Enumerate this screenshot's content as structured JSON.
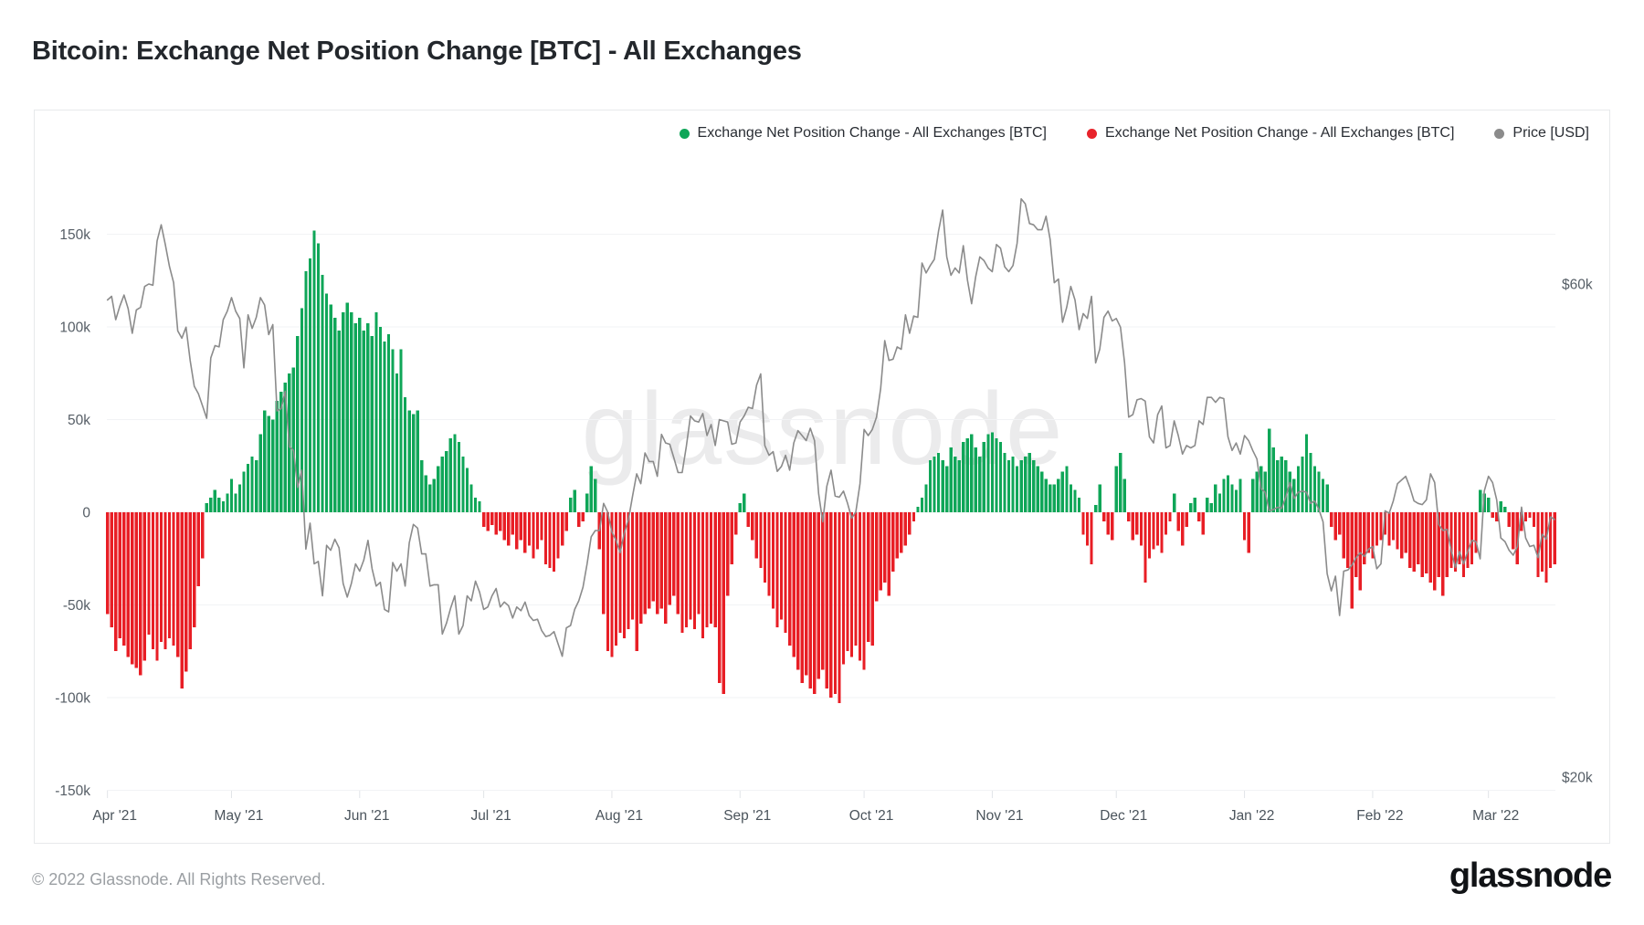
{
  "page": {
    "title": "Bitcoin: Exchange Net Position Change [BTC] - All Exchanges"
  },
  "watermark": "glassnode",
  "legend": [
    {
      "label": "Exchange Net Position Change - All Exchanges [BTC]",
      "color": "#0fa658"
    },
    {
      "label": "Exchange Net Position Change - All Exchanges [BTC]",
      "color": "#e8232b"
    },
    {
      "label": "Price [USD]",
      "color": "#8b8b8b"
    }
  ],
  "footer": {
    "copyright": "© 2022 Glassnode. All Rights Reserved.",
    "brand": "glassnode"
  },
  "chart_data": {
    "type": "bar+line",
    "title": "Bitcoin: Exchange Net Position Change [BTC] - All Exchanges",
    "x_start_date": "2021-04-01",
    "x_end_date": "2022-03-17",
    "x_frequency": "daily",
    "grid": "horizontal",
    "legend_position": "top-right",
    "left_axis": {
      "unit": "BTC",
      "labels": [
        "150k",
        "100k",
        "50k",
        "0",
        "-50k",
        "-100k",
        "-150k"
      ],
      "values_k": [
        150,
        100,
        50,
        0,
        -50,
        -100,
        -150
      ],
      "ylim_k": [
        -150,
        150
      ]
    },
    "right_axis": {
      "unit": "USD",
      "labels": [
        "$60k",
        "$20k"
      ],
      "values_k": [
        60,
        20
      ]
    },
    "months": [
      {
        "label": "Apr '21",
        "start_index": 0
      },
      {
        "label": "May '21",
        "start_index": 30
      },
      {
        "label": "Jun '21",
        "start_index": 61
      },
      {
        "label": "Jul '21",
        "start_index": 91
      },
      {
        "label": "Aug '21",
        "start_index": 122
      },
      {
        "label": "Sep '21",
        "start_index": 153
      },
      {
        "label": "Oct '21",
        "start_index": 183
      },
      {
        "label": "Nov '21",
        "start_index": 214
      },
      {
        "label": "Dec '21",
        "start_index": 244
      },
      {
        "label": "Jan '22",
        "start_index": 275
      },
      {
        "label": "Feb '22",
        "start_index": 306
      },
      {
        "label": "Mar '22",
        "start_index": 334
      }
    ],
    "series": [
      {
        "name": "Exchange Net Position Change - All Exchanges [BTC]",
        "type": "bar",
        "unit": "thousand BTC",
        "color_positive": "#0fa658",
        "color_negative": "#e81e25",
        "values_k": [
          -55,
          -62,
          -75,
          -68,
          -72,
          -78,
          -82,
          -84,
          -88,
          -80,
          -66,
          -74,
          -80,
          -70,
          -74,
          -68,
          -72,
          -78,
          -95,
          -86,
          -74,
          -62,
          -40,
          -25,
          5,
          8,
          12,
          8,
          6,
          10,
          18,
          10,
          15,
          22,
          26,
          30,
          28,
          42,
          55,
          52,
          50,
          60,
          65,
          70,
          75,
          78,
          95,
          110,
          130,
          137,
          152,
          145,
          128,
          118,
          112,
          105,
          98,
          108,
          113,
          108,
          102,
          105,
          98,
          102,
          95,
          108,
          100,
          92,
          96,
          88,
          75,
          88,
          62,
          55,
          53,
          55,
          28,
          20,
          15,
          18,
          25,
          30,
          33,
          40,
          42,
          38,
          30,
          24,
          15,
          8,
          6,
          -8,
          -10,
          -7,
          -12,
          -10,
          -15,
          -18,
          -12,
          -20,
          -15,
          -22,
          -18,
          -25,
          -20,
          -15,
          -28,
          -30,
          -32,
          -25,
          -18,
          -10,
          8,
          12,
          -8,
          -5,
          10,
          25,
          18,
          -20,
          -55,
          -75,
          -78,
          -72,
          -65,
          -68,
          -63,
          -58,
          -75,
          -60,
          -55,
          -52,
          -48,
          -55,
          -52,
          -60,
          -50,
          -45,
          -55,
          -65,
          -62,
          -58,
          -63,
          -55,
          -68,
          -62,
          -60,
          -62,
          -92,
          -98,
          -45,
          -28,
          -12,
          5,
          10,
          -8,
          -15,
          -25,
          -30,
          -38,
          -45,
          -52,
          -62,
          -58,
          -65,
          -72,
          -78,
          -85,
          -92,
          -88,
          -95,
          -98,
          -90,
          -85,
          -95,
          -100,
          -98,
          -103,
          -82,
          -75,
          -78,
          -72,
          -80,
          -85,
          -70,
          -72,
          -48,
          -42,
          -38,
          -45,
          -32,
          -25,
          -22,
          -18,
          -12,
          -5,
          3,
          8,
          15,
          28,
          30,
          32,
          28,
          25,
          35,
          30,
          28,
          38,
          40,
          42,
          35,
          30,
          38,
          42,
          43,
          40,
          38,
          32,
          28,
          30,
          25,
          28,
          30,
          32,
          28,
          25,
          22,
          18,
          15,
          15,
          18,
          22,
          25,
          15,
          12,
          8,
          -12,
          -18,
          -28,
          4,
          15,
          -5,
          -12,
          -15,
          25,
          32,
          18,
          -5,
          -15,
          -12,
          -18,
          -38,
          -25,
          -20,
          -18,
          -22,
          -12,
          -5,
          10,
          -10,
          -18,
          -8,
          5,
          8,
          -5,
          -12,
          8,
          5,
          15,
          10,
          18,
          20,
          15,
          12,
          18,
          -15,
          -22,
          18,
          22,
          25,
          22,
          45,
          35,
          28,
          30,
          28,
          22,
          18,
          25,
          30,
          42,
          32,
          25,
          22,
          18,
          15,
          -8,
          -15,
          -12,
          -25,
          -30,
          -52,
          -35,
          -42,
          -28,
          -22,
          -25,
          -18,
          -15,
          -12,
          -18,
          -15,
          -20,
          -25,
          -22,
          -30,
          -32,
          -28,
          -35,
          -33,
          -38,
          -42,
          -35,
          -45,
          -35,
          -30,
          -32,
          -28,
          -35,
          -30,
          -28,
          -22,
          12,
          10,
          8,
          -3,
          -5,
          6,
          3,
          -8,
          -20,
          -28,
          -10,
          -5,
          -3,
          -8,
          -35,
          -32,
          -38,
          -30,
          -28
        ]
      },
      {
        "name": "Price [USD]",
        "type": "line",
        "unit": "thousand USD",
        "color": "#8b8b8b",
        "values_k": [
          58.7,
          59.0,
          57.1,
          58.2,
          59.1,
          58.0,
          56.0,
          57.9,
          58.1,
          59.8,
          60.0,
          59.9,
          63.5,
          64.8,
          63.2,
          61.4,
          60.1,
          56.2,
          55.6,
          56.5,
          53.8,
          51.7,
          51.1,
          50.1,
          49.1,
          54.0,
          55.0,
          54.9,
          57.1,
          57.8,
          58.9,
          57.8,
          57.2,
          53.2,
          57.5,
          56.4,
          57.3,
          58.9,
          58.3,
          55.9,
          56.7,
          49.7,
          49.9,
          51.3,
          46.8,
          46.5,
          43.5,
          44.9,
          38.5,
          40.6,
          37.3,
          37.5,
          34.7,
          38.8,
          38.4,
          39.3,
          38.6,
          35.7,
          34.6,
          35.7,
          37.3,
          36.7,
          37.6,
          39.2,
          36.9,
          35.5,
          35.8,
          33.6,
          33.4,
          37.4,
          36.7,
          37.3,
          35.5,
          39.0,
          40.5,
          40.2,
          38.1,
          38.1,
          35.5,
          35.6,
          35.6,
          31.6,
          32.5,
          33.7,
          34.7,
          31.6,
          32.3,
          34.7,
          34.3,
          35.9,
          35.0,
          33.6,
          33.8,
          34.7,
          35.3,
          33.8,
          34.2,
          33.9,
          32.9,
          33.8,
          33.5,
          34.2,
          33.1,
          32.7,
          32.8,
          31.9,
          31.4,
          31.5,
          31.8,
          30.8,
          29.8,
          32.1,
          32.3,
          33.6,
          34.3,
          35.4,
          37.3,
          39.5,
          40.0,
          40.0,
          42.2,
          41.5,
          39.9,
          39.2,
          38.2,
          39.8,
          40.9,
          42.8,
          44.6,
          43.8,
          46.3,
          45.6,
          45.6,
          44.4,
          47.8,
          47.1,
          47.0,
          45.9,
          44.7,
          44.7,
          46.8,
          49.3,
          48.9,
          48.8,
          49.5,
          47.7,
          48.6,
          46.9,
          49.0,
          48.9,
          48.8,
          47.0,
          47.1,
          48.8,
          49.3,
          50.0,
          49.9,
          51.8,
          52.7,
          46.9,
          46.1,
          46.4,
          44.8,
          45.2,
          46.1,
          44.9,
          47.1,
          48.1,
          47.7,
          47.3,
          48.3,
          47.3,
          43.0,
          40.7,
          43.6,
          44.9,
          42.8,
          42.7,
          43.2,
          42.2,
          41.0,
          41.5,
          43.8,
          48.2,
          47.7,
          48.2,
          49.2,
          51.5,
          55.4,
          53.8,
          53.9,
          54.9,
          54.7,
          57.5,
          56.0,
          57.4,
          57.3,
          61.7,
          60.9,
          61.5,
          62.0,
          64.3,
          66.0,
          62.2,
          60.7,
          61.3,
          60.9,
          63.1,
          60.3,
          58.4,
          60.6,
          62.2,
          61.9,
          61.3,
          61.0,
          63.2,
          62.9,
          61.4,
          61.0,
          61.5,
          63.3,
          66.9,
          66.5,
          64.9,
          64.8,
          64.4,
          64.4,
          65.5,
          63.6,
          60.1,
          60.4,
          56.9,
          58.1,
          59.8,
          58.7,
          56.3,
          57.6,
          57.2,
          59.0,
          53.6,
          54.7,
          57.3,
          57.8,
          57.0,
          57.2,
          56.5,
          53.6,
          49.2,
          49.4,
          50.6,
          50.7,
          50.5,
          47.6,
          47.1,
          49.4,
          50.1,
          46.7,
          46.9,
          48.9,
          47.7,
          46.2,
          46.9,
          46.7,
          46.9,
          48.9,
          48.6,
          50.8,
          50.8,
          50.4,
          50.8,
          50.7,
          47.6,
          46.5,
          47.1,
          46.2,
          47.7,
          47.3,
          46.5,
          45.8,
          43.4,
          43.1,
          41.6,
          41.7,
          41.9,
          41.8,
          42.7,
          43.9,
          42.6,
          43.1,
          43.2,
          43.1,
          42.2,
          42.4,
          41.7,
          40.7,
          36.5,
          35.1,
          36.3,
          33.1,
          36.7,
          36.8,
          37.2,
          37.8,
          38.2,
          37.9,
          38.5,
          38.7,
          36.9,
          37.3,
          41.6,
          41.4,
          42.4,
          43.8,
          44.1,
          44.4,
          43.5,
          42.4,
          42.2,
          42.1,
          42.5,
          44.6,
          43.9,
          40.5,
          40.0,
          40.1,
          38.4,
          37.0,
          38.3,
          37.3,
          38.3,
          39.2,
          39.1,
          37.7,
          43.2,
          44.4,
          43.9,
          42.5,
          39.4,
          39.1,
          38.4,
          38.0,
          38.7,
          41.9,
          39.4,
          38.7,
          38.8,
          37.8,
          39.7,
          39.3,
          41.1,
          40.9
        ]
      }
    ],
    "style": {
      "grid_color": "#f2f3f5",
      "tick_color": "#e1e4e8",
      "axis_text_color": "#565e66",
      "month_text_color": "#4b545c"
    }
  }
}
